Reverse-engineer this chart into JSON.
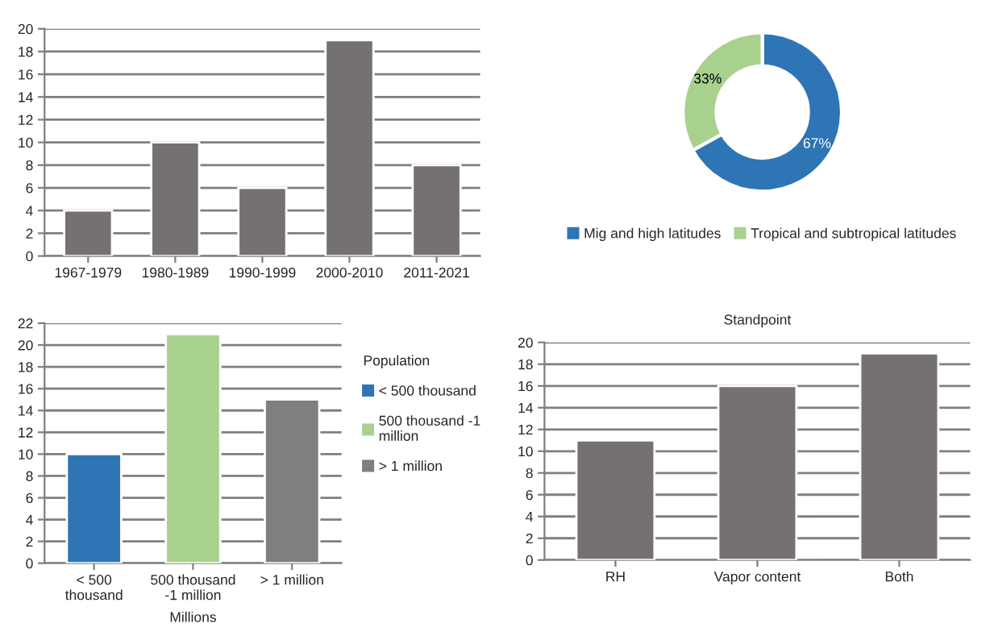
{
  "chart_data": [
    {
      "type": "bar",
      "categories": [
        "1967-1979",
        "1980-1989",
        "1990-1999",
        "2000-2010",
        "2011-2021"
      ],
      "values": [
        4,
        10,
        6,
        19,
        8
      ],
      "color": "#767171",
      "ylim": [
        0,
        20
      ],
      "yticks": [
        0,
        2,
        4,
        6,
        8,
        10,
        12,
        14,
        16,
        18,
        20
      ],
      "grid": "y"
    },
    {
      "type": "donut",
      "categories": [
        "Mig and high latitudes",
        "Tropical and subtropical latitudes"
      ],
      "values": [
        67,
        33
      ],
      "colors": [
        "#2e75b6",
        "#a9d18e"
      ],
      "value_labels": [
        "67%",
        "33%"
      ],
      "legend": "bottom"
    },
    {
      "type": "bar",
      "categories": [
        "< 500 thousand",
        "500 thousand -1 million",
        "> 1 million"
      ],
      "xlabel": "Millions",
      "legend_title": "Population",
      "legend": "right",
      "series": [
        {
          "name": "< 500 thousand",
          "color": "#2e75b6",
          "values": [
            10,
            null,
            null
          ]
        },
        {
          "name": "500 thousand -1 million",
          "color": "#a9d18e",
          "values": [
            null,
            21,
            null
          ]
        },
        {
          "name": "> 1 million",
          "color": "#7f7f7f",
          "values": [
            null,
            null,
            15
          ]
        }
      ],
      "ylim": [
        0,
        22
      ],
      "yticks": [
        0,
        2,
        4,
        6,
        8,
        10,
        12,
        14,
        16,
        18,
        20,
        22
      ],
      "grid": "y"
    },
    {
      "type": "bar",
      "title": "Standpoint",
      "categories": [
        "RH",
        "Vapor content",
        "Both"
      ],
      "values": [
        11,
        16,
        19
      ],
      "color": "#767171",
      "ylim": [
        0,
        20
      ],
      "yticks": [
        0,
        2,
        4,
        6,
        8,
        10,
        12,
        14,
        16,
        18,
        20
      ],
      "grid": "y"
    }
  ]
}
